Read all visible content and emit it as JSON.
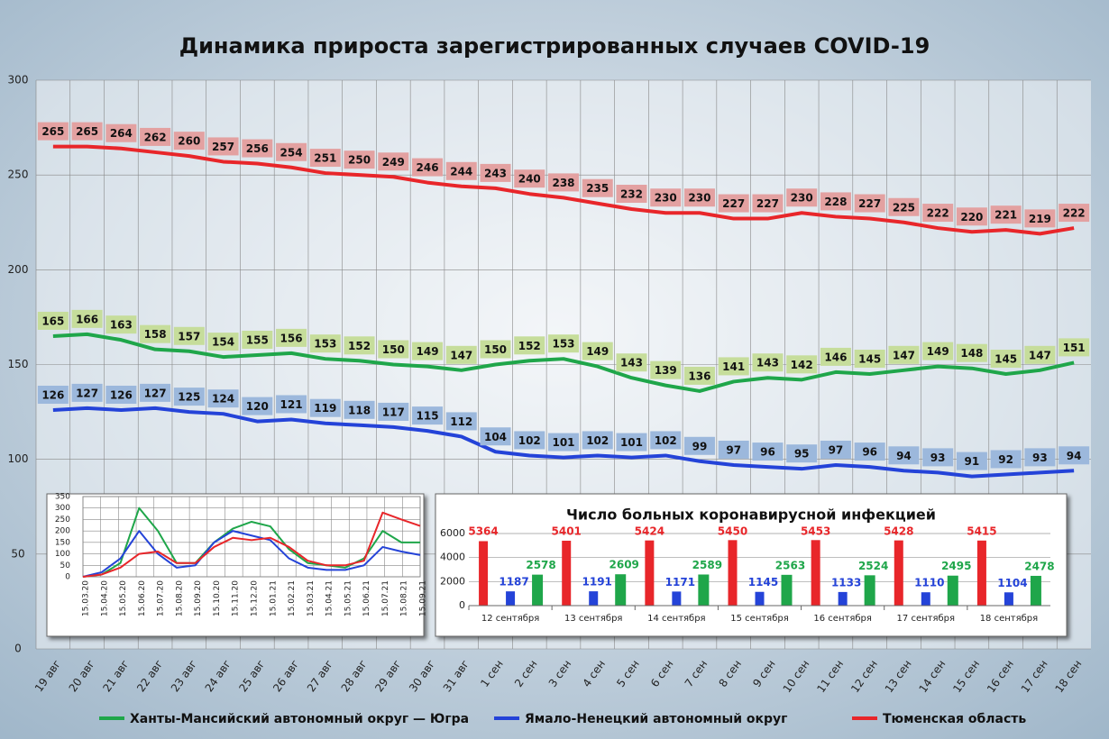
{
  "chart_data": [
    {
      "type": "line",
      "title": "Динамика прироста зарегистрированных случаев COVID-19",
      "categories": [
        "19 авг",
        "20 авг",
        "21 авг",
        "22 авг",
        "23 авг",
        "24 авг",
        "25 авг",
        "26 авг",
        "27 авг",
        "28 авг",
        "29 авг",
        "30 авг",
        "31 авг",
        "1 сен",
        "2 сен",
        "3 сен",
        "4 сен",
        "5 сен",
        "6 сен",
        "7 сен",
        "8 сен",
        "9 сен",
        "10 сен",
        "11 сен",
        "12 сен",
        "13 сен",
        "14 сен",
        "15 сен",
        "16 сен",
        "17 сен",
        "18 сен"
      ],
      "ylim": [
        0,
        300
      ],
      "yticks": [
        0,
        50,
        100,
        150,
        200,
        250,
        300
      ],
      "grid": true,
      "data_labels": true,
      "legend": "bottom",
      "series": [
        {
          "name": "Ханты-Мансийский автономный округ — Югра",
          "color": "#1fa64a",
          "label_color": "#c6dd9b",
          "values": [
            165,
            166,
            163,
            158,
            157,
            154,
            155,
            156,
            153,
            152,
            150,
            149,
            147,
            150,
            152,
            153,
            149,
            143,
            139,
            136,
            141,
            143,
            142,
            146,
            145,
            147,
            149,
            148,
            145,
            147,
            151
          ]
        },
        {
          "name": "Ямало-Ненецкий автономный округ",
          "color": "#2443d8",
          "label_color": "#9cb8dc",
          "values": [
            126,
            127,
            126,
            127,
            125,
            124,
            120,
            121,
            119,
            118,
            117,
            115,
            112,
            104,
            102,
            101,
            102,
            101,
            102,
            99,
            97,
            96,
            95,
            97,
            96,
            94,
            93,
            91,
            92,
            93,
            94
          ]
        },
        {
          "name": "Тюменская область",
          "color": "#e8262a",
          "label_color": "#e3a1a1",
          "values": [
            265,
            265,
            264,
            262,
            260,
            257,
            256,
            254,
            251,
            250,
            249,
            246,
            244,
            243,
            240,
            238,
            235,
            232,
            230,
            230,
            227,
            227,
            230,
            228,
            227,
            225,
            222,
            220,
            221,
            219,
            222
          ]
        }
      ]
    },
    {
      "type": "line",
      "categories": [
        "15.03.20",
        "15.04.20",
        "15.05.20",
        "15.06.20",
        "15.07.20",
        "15.08.20",
        "15.09.20",
        "15.10.20",
        "15.11.20",
        "15.12.20",
        "15.01.21",
        "15.02.21",
        "15.03.21",
        "15.04.21",
        "15.05.21",
        "15.06.21",
        "15.07.21",
        "15.08.21",
        "15.09.21"
      ],
      "ylim": [
        0,
        350
      ],
      "yticks": [
        0,
        50,
        100,
        150,
        200,
        250,
        300,
        350
      ],
      "grid": true,
      "series": [
        {
          "color": "#1fa64a",
          "values": [
            0,
            10,
            60,
            300,
            200,
            60,
            60,
            150,
            210,
            240,
            220,
            120,
            60,
            50,
            40,
            80,
            200,
            150,
            150
          ]
        },
        {
          "color": "#2443d8",
          "values": [
            0,
            20,
            80,
            200,
            100,
            40,
            50,
            150,
            200,
            180,
            160,
            80,
            40,
            30,
            30,
            50,
            130,
            110,
            95
          ]
        },
        {
          "color": "#e8262a",
          "values": [
            0,
            10,
            40,
            100,
            110,
            60,
            60,
            130,
            170,
            160,
            170,
            130,
            70,
            50,
            50,
            70,
            280,
            250,
            222
          ]
        }
      ]
    },
    {
      "type": "bar",
      "title": "Число больных коронавирусной  инфекцией",
      "categories": [
        "12 сентября",
        "13 сентября",
        "14 сентября",
        "15 сентября",
        "16 сентября",
        "17 сентября",
        "18 сентября"
      ],
      "ylim": [
        0,
        6000
      ],
      "yticks": [
        0,
        2000,
        4000,
        6000
      ],
      "grid": true,
      "data_labels": true,
      "series": [
        {
          "color": "#e8262a",
          "values": [
            5364,
            5401,
            5424,
            5450,
            5453,
            5428,
            5415
          ]
        },
        {
          "color": "#2443d8",
          "values": [
            1187,
            1191,
            1171,
            1145,
            1133,
            1110,
            1104
          ]
        },
        {
          "color": "#1fa64a",
          "values": [
            2578,
            2609,
            2589,
            2563,
            2524,
            2495,
            2478
          ]
        }
      ]
    }
  ]
}
